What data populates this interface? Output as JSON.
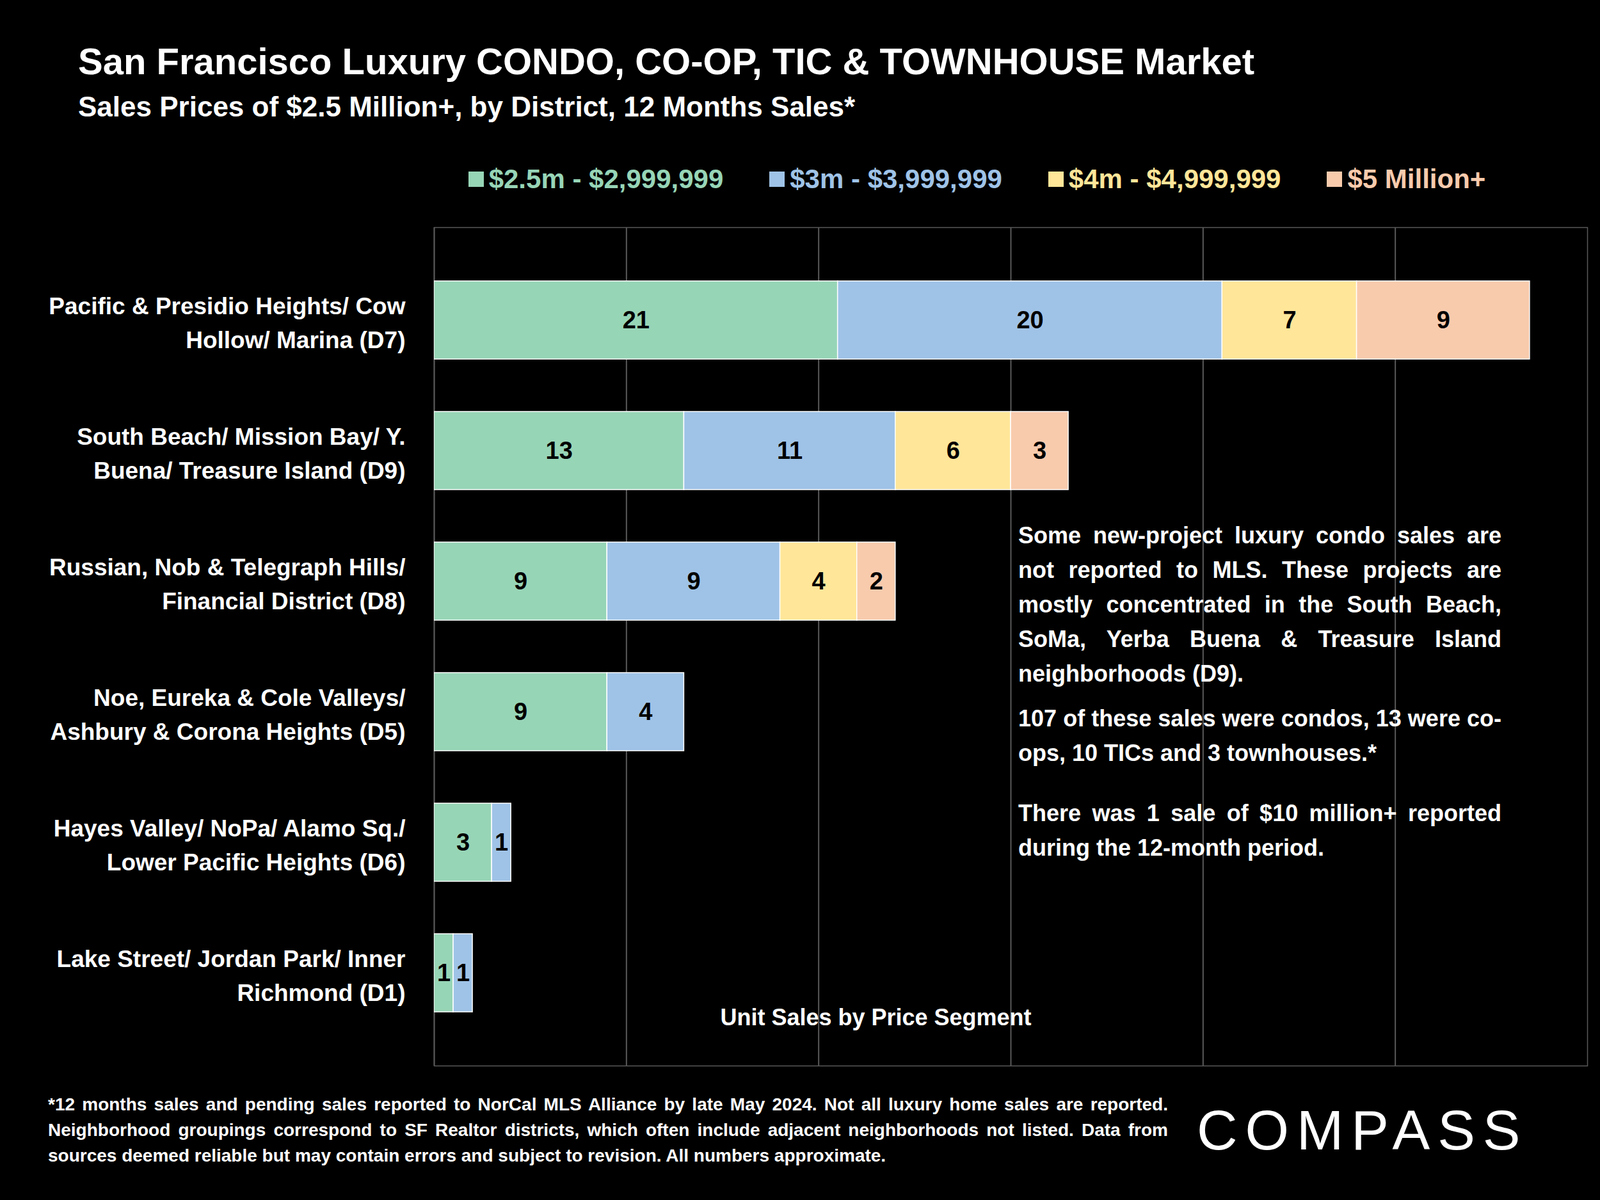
{
  "chart_data": {
    "type": "bar",
    "title": "San Francisco Luxury CONDO, CO-OP, TIC & TOWNHOUSE Market",
    "subtitle": "Sales Prices of $2.5 Million+, by District, 12 Months Sales*",
    "orientation": "horizontal",
    "stacked": true,
    "data_labels": true,
    "tick_labels": "y",
    "grid": true,
    "legend": "top",
    "x_label": "Unit Sales by Price Segment",
    "categories": [
      "Pacific & Presidio Heights/ Cow Hollow/ Marina (D7)",
      "South Beach/ Mission Bay/ Y. Buena/ Treasure Island (D9)",
      "Russian, Nob & Telegraph Hills/ Financial District (D8)",
      "Noe, Eureka & Cole Valleys/ Ashbury & Corona Heights (D5)",
      "Hayes Valley/ NoPa/ Alamo Sq./ Lower Pacific Heights (D6)",
      "Lake Street/ Jordan Park/ Inner Richmond (D1)"
    ],
    "series": [
      {
        "name": "$2.5m - $2,999,999",
        "color": "#97d5b7",
        "values": [
          21,
          13,
          9,
          9,
          3,
          1
        ]
      },
      {
        "name": "$3m - $3,999,999",
        "color": "#9fc3e7",
        "values": [
          20,
          11,
          9,
          4,
          1,
          1
        ]
      },
      {
        "name": "$4m - $4,999,999",
        "color": "#ffe699",
        "values": [
          7,
          6,
          4,
          null,
          null,
          null
        ]
      },
      {
        "name": "$5 Million+",
        "color": "#f8cbad",
        "values": [
          9,
          3,
          2,
          null,
          null,
          null
        ]
      }
    ],
    "xlim": [
      0,
      60
    ],
    "xticks": [
      0,
      10,
      20,
      30,
      40,
      50
    ],
    "annotations": [
      "Some new-project luxury condo sales are not reported to MLS. These projects are mostly concentrated in the South Beach, SoMa, Yerba Buena & Treasure Island neighborhoods (D9).",
      "107 of these sales were condos, 13 were co-ops, 10 TICs and 3 townhouses.*",
      "There was 1 sale of $10 million+ reported during the 12-month period."
    ],
    "footnote": "*12 months sales and pending sales reported to NorCal MLS Alliance by late May 2024. Not all luxury home sales are reported. Neighborhood groupings correspond to SF Realtor districts, which often include adjacent neighborhoods not listed. Data from sources deemed reliable but may contain errors and subject to revision. All numbers approximate.",
    "logo": "COMPASS"
  }
}
